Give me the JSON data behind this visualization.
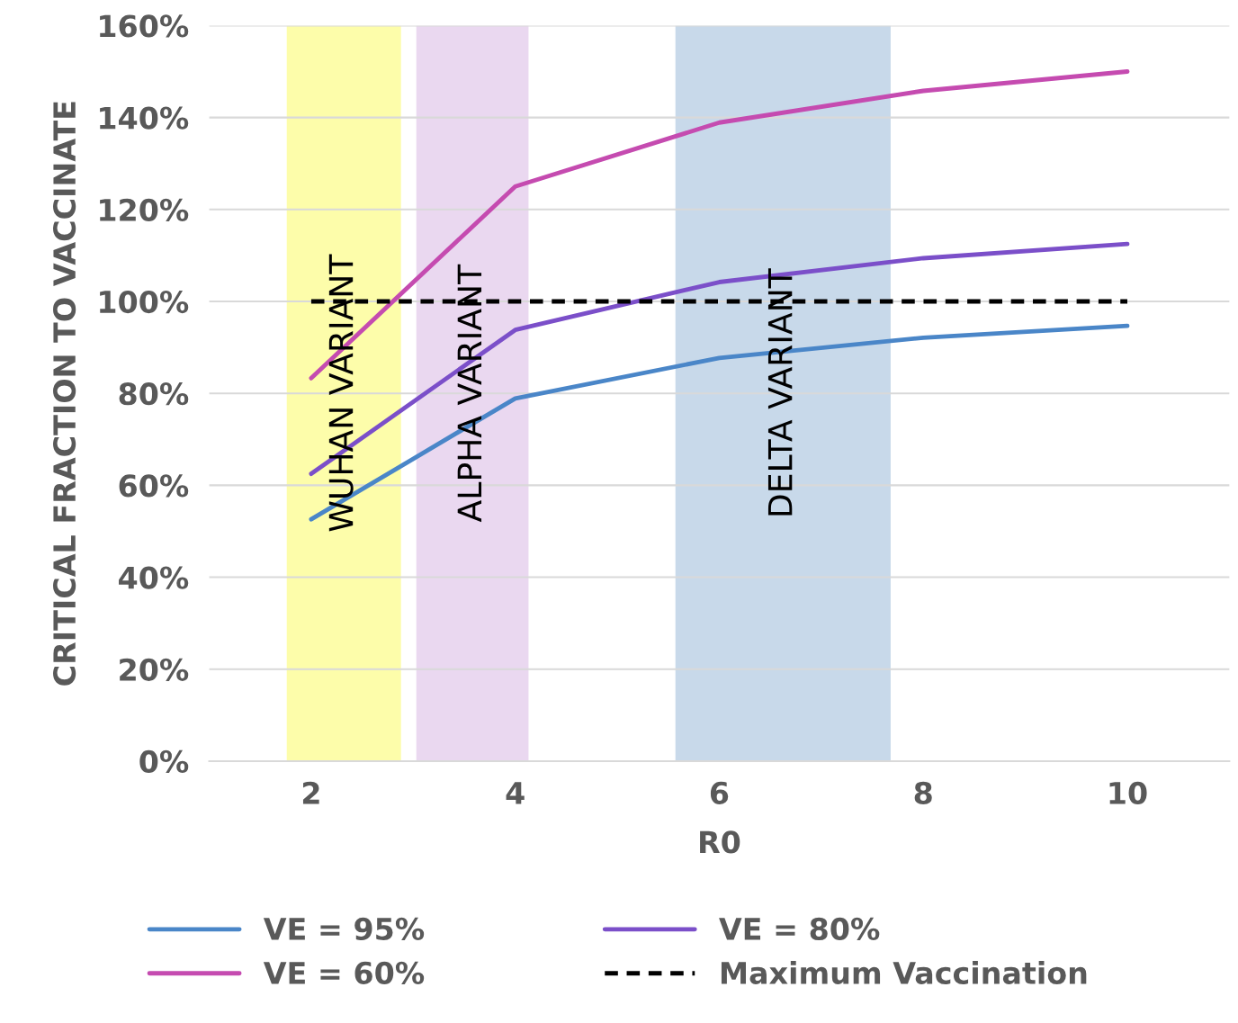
{
  "chart_data": {
    "type": "line",
    "xlabel": "R0",
    "ylabel": "CRITICAL FRACTION TO VACCINATE",
    "x": [
      2,
      4,
      6,
      8,
      10
    ],
    "xlim": [
      1,
      11
    ],
    "xticks": [
      2,
      4,
      6,
      8,
      10
    ],
    "ylim": [
      0,
      160
    ],
    "yticks": [
      {
        "value": 0,
        "label": "0%"
      },
      {
        "value": 20,
        "label": "20%"
      },
      {
        "value": 40,
        "label": "40%"
      },
      {
        "value": 60,
        "label": "60%"
      },
      {
        "value": 80,
        "label": "80%"
      },
      {
        "value": 100,
        "label": "100%"
      },
      {
        "value": 120,
        "label": "120%"
      },
      {
        "value": 140,
        "label": "140%"
      },
      {
        "value": 160,
        "label": "160%"
      }
    ],
    "grid": "y",
    "legend": "bottom",
    "marker": "none",
    "series": [
      {
        "name": "VE = 95%",
        "color": "#4a86c8",
        "values": [
          52.6,
          78.9,
          87.7,
          92.1,
          94.7
        ]
      },
      {
        "name": "VE = 80%",
        "color": "#7b4fc9",
        "values": [
          62.5,
          93.8,
          104.2,
          109.4,
          112.5
        ]
      },
      {
        "name": "VE = 60%",
        "color": "#c54bb0",
        "values": [
          83.3,
          125,
          138.9,
          145.8,
          150
        ]
      },
      {
        "name": "Maximum Vaccination",
        "color": "#000000",
        "line_style": "dashed",
        "values": [
          100,
          100,
          100,
          100,
          100
        ]
      }
    ],
    "bands": [
      {
        "axis": "x",
        "from": 1.76,
        "to": 2.88,
        "label": "WUHAN VARIANT",
        "color": "#fdfdaa"
      },
      {
        "axis": "x",
        "from": 3.03,
        "to": 4.13,
        "label": "ALPHA VARIANT",
        "color": "#ead8f0"
      },
      {
        "axis": "x",
        "from": 5.57,
        "to": 7.68,
        "label": "DELTA VARIANT",
        "color": "#c8d9ea"
      }
    ]
  }
}
